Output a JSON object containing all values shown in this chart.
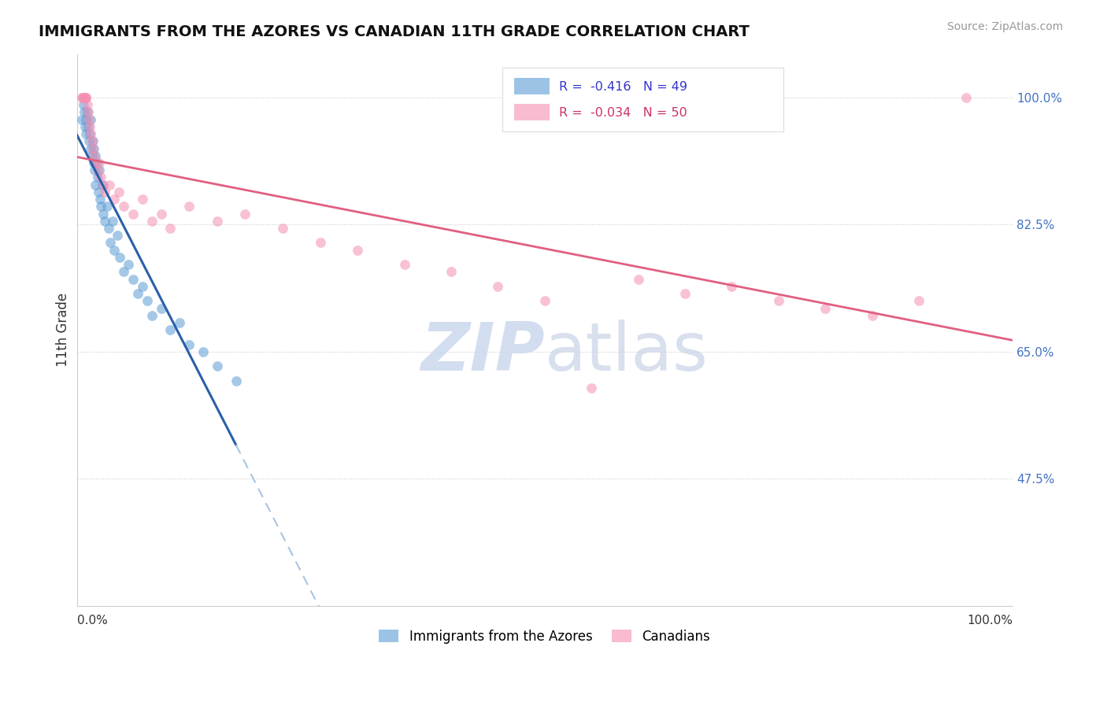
{
  "title": "IMMIGRANTS FROM THE AZORES VS CANADIAN 11TH GRADE CORRELATION CHART",
  "source": "Source: ZipAtlas.com",
  "ylabel": "11th Grade",
  "yticks": [
    0.475,
    0.65,
    0.825,
    1.0
  ],
  "ytick_labels": [
    "47.5%",
    "65.0%",
    "82.5%",
    "100.0%"
  ],
  "xlim": [
    0.0,
    1.0
  ],
  "ylim": [
    0.3,
    1.06
  ],
  "r_blue": -0.416,
  "n_blue": 49,
  "r_pink": -0.034,
  "n_pink": 50,
  "blue_color": "#5b9bd5",
  "blue_line_color": "#2a5fa8",
  "blue_dash_color": "#a8c4e0",
  "pink_color": "#f48fb1",
  "pink_line_color": "#e06080",
  "bg_color": "#ffffff",
  "grid_color": "#cccccc",
  "scatter_alpha": 0.55,
  "scatter_size": 85,
  "blue_scatter_x": [
    0.005,
    0.007,
    0.008,
    0.009,
    0.01,
    0.01,
    0.011,
    0.012,
    0.013,
    0.014,
    0.015,
    0.015,
    0.016,
    0.017,
    0.018,
    0.018,
    0.019,
    0.02,
    0.02,
    0.021,
    0.022,
    0.023,
    0.024,
    0.025,
    0.026,
    0.027,
    0.028,
    0.03,
    0.032,
    0.034,
    0.036,
    0.038,
    0.04,
    0.043,
    0.046,
    0.05,
    0.055,
    0.06,
    0.065,
    0.07,
    0.075,
    0.08,
    0.09,
    0.1,
    0.11,
    0.12,
    0.135,
    0.15,
    0.17
  ],
  "blue_scatter_y": [
    0.97,
    0.99,
    0.98,
    0.96,
    0.97,
    0.95,
    0.98,
    0.96,
    0.94,
    0.95,
    0.97,
    0.93,
    0.92,
    0.94,
    0.91,
    0.93,
    0.9,
    0.92,
    0.88,
    0.91,
    0.89,
    0.87,
    0.9,
    0.86,
    0.85,
    0.88,
    0.84,
    0.83,
    0.85,
    0.82,
    0.8,
    0.83,
    0.79,
    0.81,
    0.78,
    0.76,
    0.77,
    0.75,
    0.73,
    0.74,
    0.72,
    0.7,
    0.71,
    0.68,
    0.69,
    0.66,
    0.65,
    0.63,
    0.61
  ],
  "pink_scatter_x": [
    0.005,
    0.006,
    0.007,
    0.008,
    0.008,
    0.009,
    0.01,
    0.01,
    0.011,
    0.012,
    0.013,
    0.014,
    0.015,
    0.016,
    0.017,
    0.018,
    0.02,
    0.022,
    0.024,
    0.026,
    0.028,
    0.03,
    0.035,
    0.04,
    0.045,
    0.05,
    0.06,
    0.07,
    0.08,
    0.09,
    0.1,
    0.12,
    0.15,
    0.18,
    0.22,
    0.26,
    0.3,
    0.35,
    0.4,
    0.45,
    0.5,
    0.55,
    0.6,
    0.65,
    0.7,
    0.75,
    0.8,
    0.85,
    0.9,
    0.95
  ],
  "pink_scatter_y": [
    1.0,
    1.0,
    1.0,
    1.0,
    1.0,
    1.0,
    1.0,
    1.0,
    0.99,
    0.98,
    0.97,
    0.96,
    0.95,
    0.94,
    0.93,
    0.92,
    0.91,
    0.9,
    0.91,
    0.89,
    0.88,
    0.87,
    0.88,
    0.86,
    0.87,
    0.85,
    0.84,
    0.86,
    0.83,
    0.84,
    0.82,
    0.85,
    0.83,
    0.84,
    0.82,
    0.8,
    0.79,
    0.77,
    0.76,
    0.74,
    0.72,
    0.6,
    0.75,
    0.73,
    0.74,
    0.72,
    0.71,
    0.7,
    0.72,
    1.0
  ],
  "watermark_zip": "ZIP",
  "watermark_atlas": "atlas"
}
